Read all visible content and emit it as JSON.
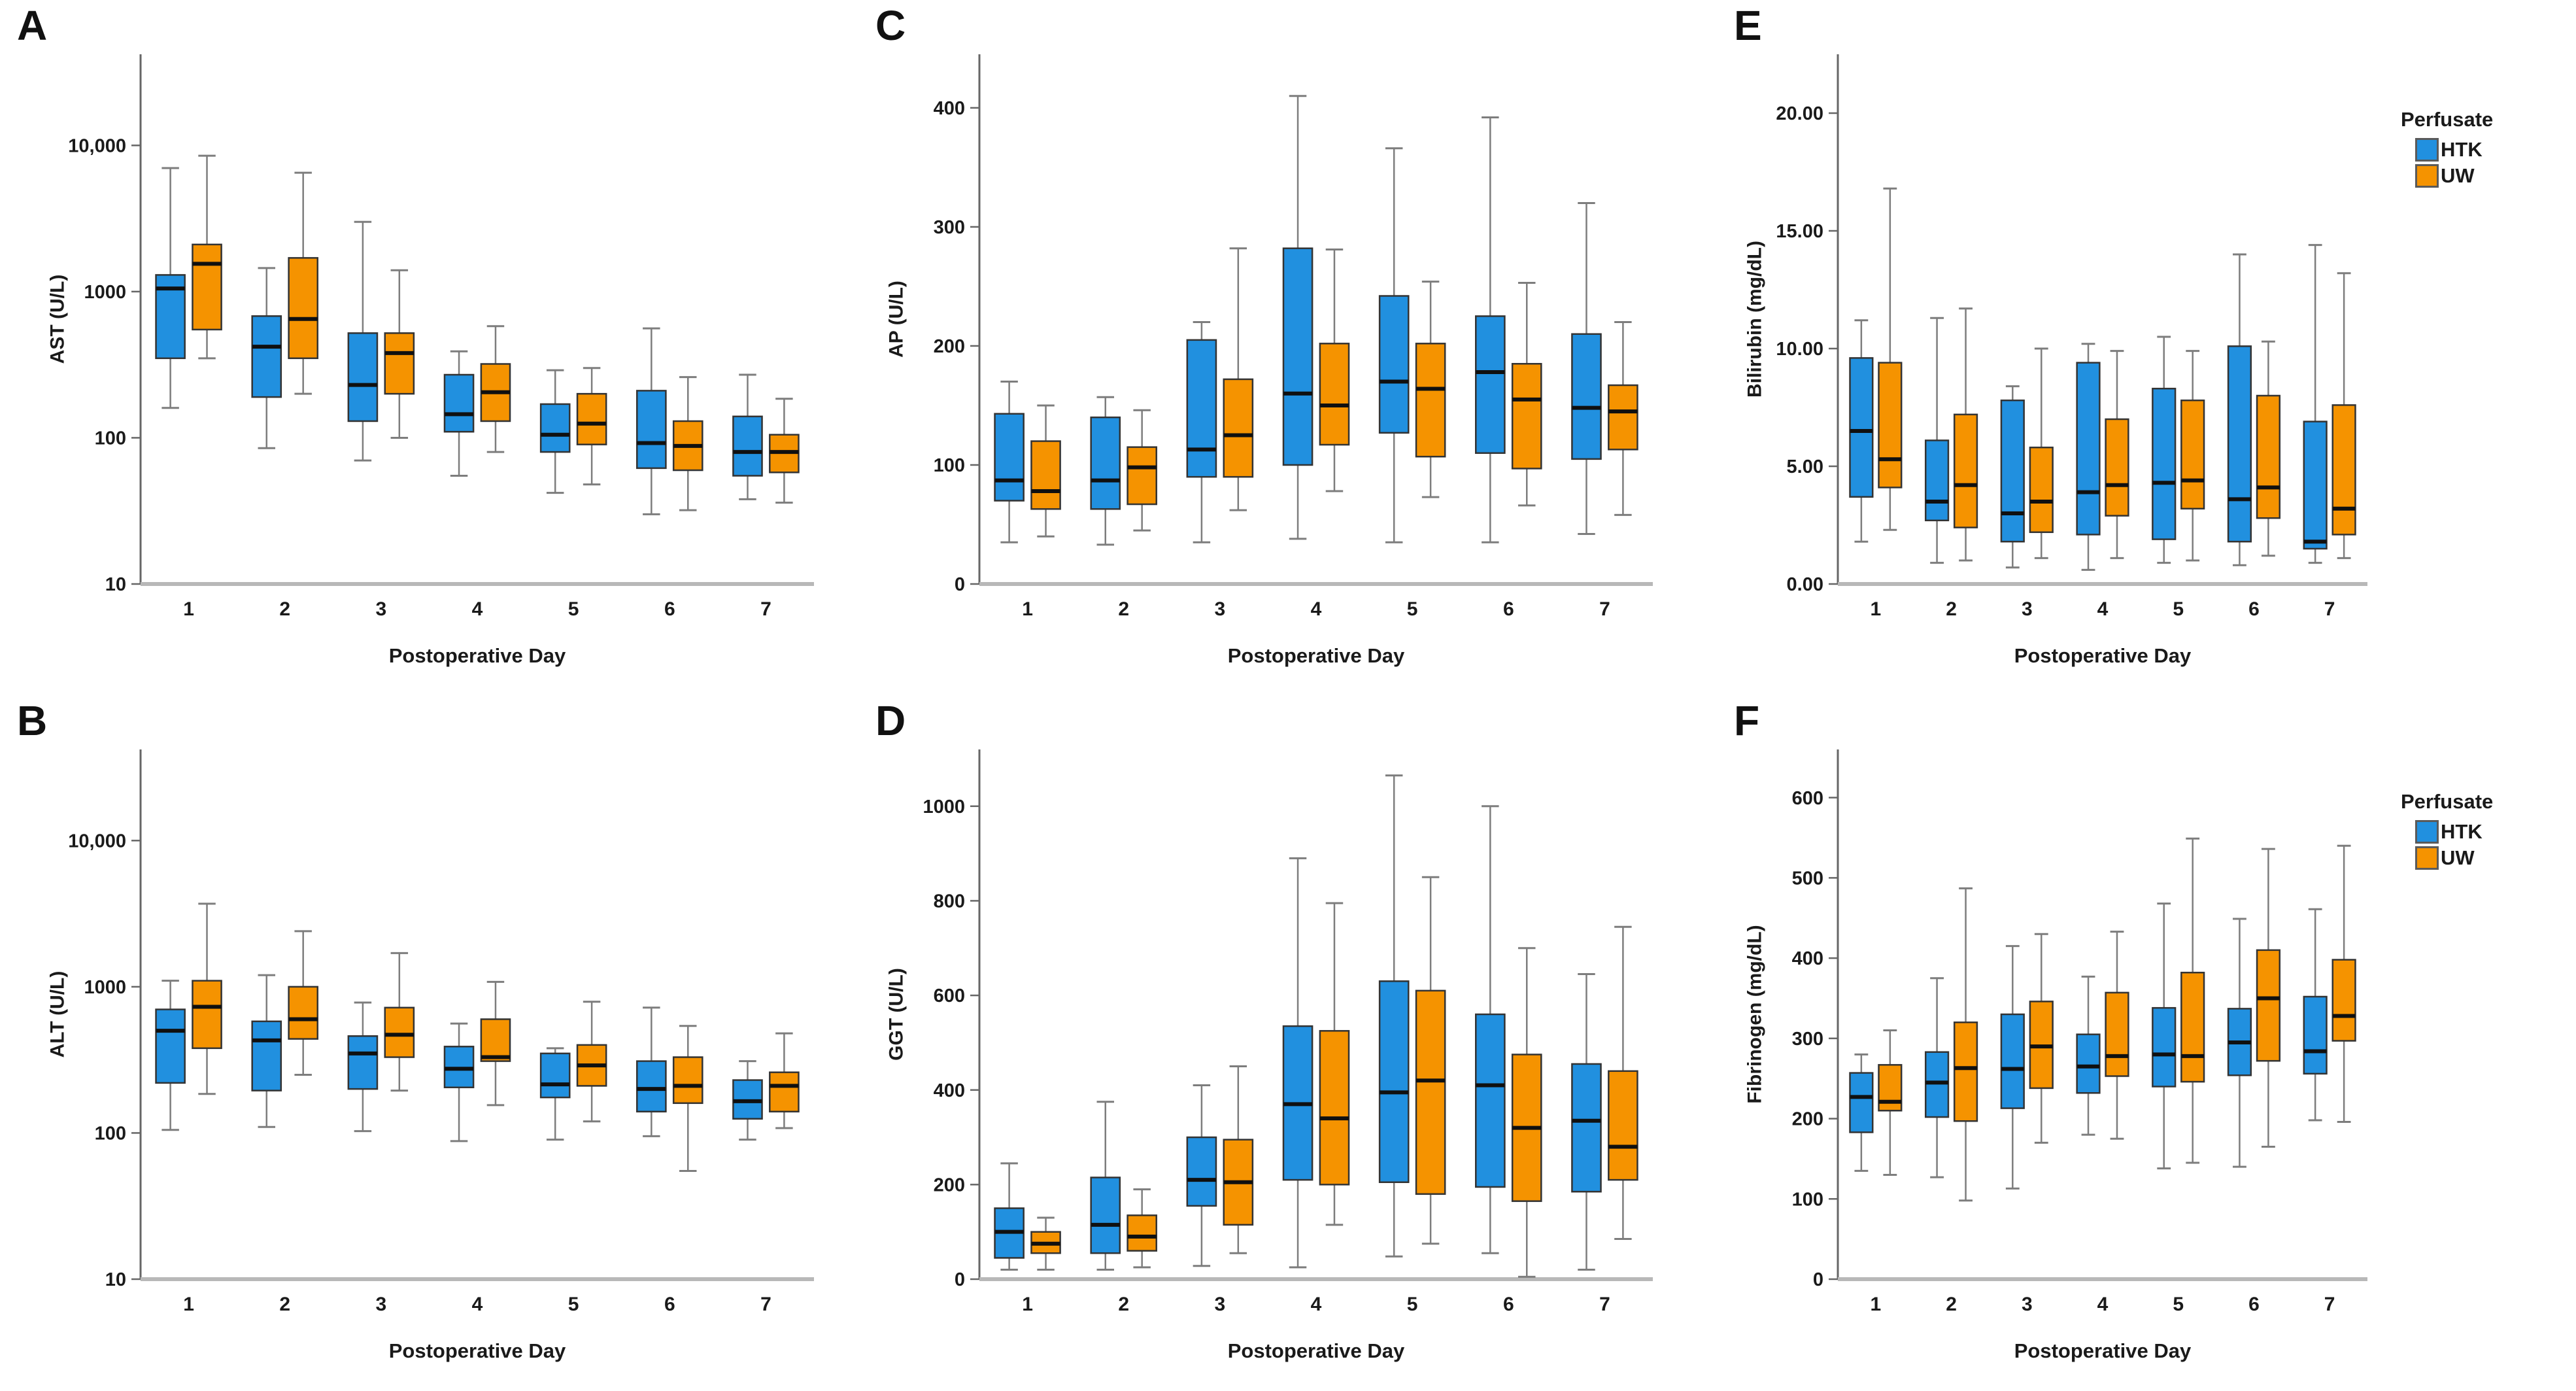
{
  "figure": {
    "xlabel": "Postoperative Day",
    "days": [
      "1",
      "2",
      "3",
      "4",
      "5",
      "6",
      "7"
    ],
    "legend": {
      "title": "Perfusate",
      "items": [
        {
          "label": "HTK",
          "color": "#2190DF"
        },
        {
          "label": "UW",
          "color": "#F59300"
        }
      ]
    },
    "colors": {
      "htk": "#2190DF",
      "uw": "#F59300",
      "box_border": "#333333",
      "median": "#101010",
      "whisker": "#7d7d7d",
      "axis": "#666666",
      "baseline": "#b8b8b8",
      "text": "#1a1a1a"
    }
  },
  "chart_data": [
    {
      "panel_label": "A",
      "type": "boxplot",
      "ylabel": "AST (U/L)",
      "xlabel": "Postoperative Day",
      "yscale": "log",
      "ylim": [
        10,
        42000
      ],
      "grid": false,
      "yticks": [
        {
          "v": 10,
          "label": "10"
        },
        {
          "v": 100,
          "label": "100"
        },
        {
          "v": 1000,
          "label": "1000"
        },
        {
          "v": 10000,
          "label": "10,000"
        }
      ],
      "categories": [
        "1",
        "2",
        "3",
        "4",
        "5",
        "6",
        "7"
      ],
      "series": [
        {
          "name": "HTK",
          "color": "#2190DF",
          "boxes": [
            {
              "low": 160,
              "q1": 350,
              "median": 1050,
              "q3": 1300,
              "high": 7000
            },
            {
              "low": 85,
              "q1": 190,
              "median": 420,
              "q3": 680,
              "high": 1450
            },
            {
              "low": 70,
              "q1": 130,
              "median": 230,
              "q3": 520,
              "high": 3000
            },
            {
              "low": 55,
              "q1": 110,
              "median": 145,
              "q3": 270,
              "high": 390
            },
            {
              "low": 42,
              "q1": 80,
              "median": 105,
              "q3": 170,
              "high": 290
            },
            {
              "low": 30,
              "q1": 62,
              "median": 92,
              "q3": 210,
              "high": 560
            },
            {
              "low": 38,
              "q1": 55,
              "median": 80,
              "q3": 140,
              "high": 270
            }
          ]
        },
        {
          "name": "UW",
          "color": "#F59300",
          "boxes": [
            {
              "low": 350,
              "q1": 550,
              "median": 1550,
              "q3": 2100,
              "high": 8500
            },
            {
              "low": 200,
              "q1": 350,
              "median": 650,
              "q3": 1700,
              "high": 6500
            },
            {
              "low": 100,
              "q1": 200,
              "median": 380,
              "q3": 520,
              "high": 1400
            },
            {
              "low": 80,
              "q1": 130,
              "median": 205,
              "q3": 320,
              "high": 580
            },
            {
              "low": 48,
              "q1": 90,
              "median": 125,
              "q3": 200,
              "high": 300
            },
            {
              "low": 32,
              "q1": 60,
              "median": 88,
              "q3": 130,
              "high": 260
            },
            {
              "low": 36,
              "q1": 58,
              "median": 80,
              "q3": 105,
              "high": 185
            }
          ]
        }
      ]
    },
    {
      "panel_label": "B",
      "type": "boxplot",
      "ylabel": "ALT (U/L)",
      "xlabel": "Postoperative Day",
      "yscale": "log",
      "ylim": [
        10,
        42000
      ],
      "grid": false,
      "yticks": [
        {
          "v": 10,
          "label": "10"
        },
        {
          "v": 100,
          "label": "100"
        },
        {
          "v": 1000,
          "label": "1000"
        },
        {
          "v": 10000,
          "label": "10,000"
        }
      ],
      "categories": [
        "1",
        "2",
        "3",
        "4",
        "5",
        "6",
        "7"
      ],
      "series": [
        {
          "name": "HTK",
          "color": "#2190DF",
          "boxes": [
            {
              "low": 105,
              "q1": 220,
              "median": 500,
              "q3": 700,
              "high": 1100
            },
            {
              "low": 110,
              "q1": 195,
              "median": 430,
              "q3": 580,
              "high": 1200
            },
            {
              "low": 103,
              "q1": 200,
              "median": 350,
              "q3": 460,
              "high": 780
            },
            {
              "low": 88,
              "q1": 205,
              "median": 275,
              "q3": 390,
              "high": 560
            },
            {
              "low": 90,
              "q1": 175,
              "median": 215,
              "q3": 350,
              "high": 380
            },
            {
              "low": 95,
              "q1": 140,
              "median": 200,
              "q3": 310,
              "high": 720
            },
            {
              "low": 90,
              "q1": 125,
              "median": 165,
              "q3": 230,
              "high": 310
            }
          ]
        },
        {
          "name": "UW",
          "color": "#F59300",
          "boxes": [
            {
              "low": 185,
              "q1": 380,
              "median": 730,
              "q3": 1100,
              "high": 3700
            },
            {
              "low": 250,
              "q1": 440,
              "median": 600,
              "q3": 1000,
              "high": 2400
            },
            {
              "low": 195,
              "q1": 330,
              "median": 470,
              "q3": 720,
              "high": 1700
            },
            {
              "low": 155,
              "q1": 310,
              "median": 330,
              "q3": 600,
              "high": 1080
            },
            {
              "low": 120,
              "q1": 210,
              "median": 290,
              "q3": 400,
              "high": 790
            },
            {
              "low": 55,
              "q1": 160,
              "median": 210,
              "q3": 330,
              "high": 540
            },
            {
              "low": 108,
              "q1": 140,
              "median": 210,
              "q3": 260,
              "high": 480
            }
          ]
        }
      ]
    },
    {
      "panel_label": "C",
      "type": "boxplot",
      "ylabel": "AP (U/L)",
      "xlabel": "Postoperative Day",
      "yscale": "linear",
      "ylim": [
        0,
        445
      ],
      "grid": false,
      "yticks": [
        {
          "v": 0,
          "label": "0"
        },
        {
          "v": 100,
          "label": "100"
        },
        {
          "v": 200,
          "label": "200"
        },
        {
          "v": 300,
          "label": "300"
        },
        {
          "v": 400,
          "label": "400"
        }
      ],
      "categories": [
        "1",
        "2",
        "3",
        "4",
        "5",
        "6",
        "7"
      ],
      "series": [
        {
          "name": "HTK",
          "color": "#2190DF",
          "boxes": [
            {
              "low": 35,
              "q1": 70,
              "median": 87,
              "q3": 143,
              "high": 170
            },
            {
              "low": 33,
              "q1": 63,
              "median": 87,
              "q3": 140,
              "high": 157
            },
            {
              "low": 35,
              "q1": 90,
              "median": 113,
              "q3": 205,
              "high": 220
            },
            {
              "low": 38,
              "q1": 100,
              "median": 160,
              "q3": 282,
              "high": 410
            },
            {
              "low": 35,
              "q1": 127,
              "median": 170,
              "q3": 242,
              "high": 366
            },
            {
              "low": 35,
              "q1": 110,
              "median": 178,
              "q3": 225,
              "high": 392
            },
            {
              "low": 42,
              "q1": 105,
              "median": 148,
              "q3": 210,
              "high": 320
            }
          ]
        },
        {
          "name": "UW",
          "color": "#F59300",
          "boxes": [
            {
              "low": 40,
              "q1": 63,
              "median": 78,
              "q3": 120,
              "high": 150
            },
            {
              "low": 45,
              "q1": 67,
              "median": 98,
              "q3": 115,
              "high": 146
            },
            {
              "low": 62,
              "q1": 90,
              "median": 125,
              "q3": 172,
              "high": 282
            },
            {
              "low": 78,
              "q1": 117,
              "median": 150,
              "q3": 202,
              "high": 281
            },
            {
              "low": 73,
              "q1": 107,
              "median": 164,
              "q3": 202,
              "high": 254
            },
            {
              "low": 66,
              "q1": 97,
              "median": 155,
              "q3": 185,
              "high": 253
            },
            {
              "low": 58,
              "q1": 113,
              "median": 145,
              "q3": 167,
              "high": 220
            }
          ]
        }
      ]
    },
    {
      "panel_label": "D",
      "type": "boxplot",
      "ylabel": "GGT (U/L)",
      "xlabel": "Postoperative Day",
      "yscale": "linear",
      "ylim": [
        0,
        1120
      ],
      "grid": false,
      "yticks": [
        {
          "v": 0,
          "label": "0"
        },
        {
          "v": 200,
          "label": "200"
        },
        {
          "v": 400,
          "label": "400"
        },
        {
          "v": 600,
          "label": "600"
        },
        {
          "v": 800,
          "label": "800"
        },
        {
          "v": 1000,
          "label": "1000"
        }
      ],
      "categories": [
        "1",
        "2",
        "3",
        "4",
        "5",
        "6",
        "7"
      ],
      "series": [
        {
          "name": "HTK",
          "color": "#2190DF",
          "boxes": [
            {
              "low": 20,
              "q1": 45,
              "median": 100,
              "q3": 150,
              "high": 245
            },
            {
              "low": 20,
              "q1": 55,
              "median": 115,
              "q3": 215,
              "high": 375
            },
            {
              "low": 28,
              "q1": 155,
              "median": 210,
              "q3": 300,
              "high": 410
            },
            {
              "low": 25,
              "q1": 210,
              "median": 370,
              "q3": 535,
              "high": 890
            },
            {
              "low": 48,
              "q1": 205,
              "median": 395,
              "q3": 630,
              "high": 1065
            },
            {
              "low": 55,
              "q1": 195,
              "median": 410,
              "q3": 560,
              "high": 1000
            },
            {
              "low": 20,
              "q1": 185,
              "median": 335,
              "q3": 455,
              "high": 645
            }
          ]
        },
        {
          "name": "UW",
          "color": "#F59300",
          "boxes": [
            {
              "low": 20,
              "q1": 55,
              "median": 75,
              "q3": 100,
              "high": 130
            },
            {
              "low": 25,
              "q1": 60,
              "median": 90,
              "q3": 135,
              "high": 190
            },
            {
              "low": 55,
              "q1": 115,
              "median": 205,
              "q3": 295,
              "high": 450
            },
            {
              "low": 115,
              "q1": 200,
              "median": 340,
              "q3": 525,
              "high": 795
            },
            {
              "low": 75,
              "q1": 180,
              "median": 420,
              "q3": 610,
              "high": 850
            },
            {
              "low": 5,
              "q1": 165,
              "median": 320,
              "q3": 475,
              "high": 700
            },
            {
              "low": 85,
              "q1": 210,
              "median": 280,
              "q3": 440,
              "high": 745
            }
          ]
        }
      ]
    },
    {
      "panel_label": "E",
      "type": "boxplot",
      "ylabel": "Bilirubin (mg/dL)",
      "xlabel": "Postoperative Day",
      "yscale": "linear",
      "ylim": [
        0,
        22.5
      ],
      "grid": false,
      "yticks": [
        {
          "v": 0,
          "label": "0.00"
        },
        {
          "v": 5,
          "label": "5.00"
        },
        {
          "v": 10,
          "label": "10.00"
        },
        {
          "v": 15,
          "label": "15.00"
        },
        {
          "v": 20,
          "label": "20.00"
        }
      ],
      "categories": [
        "1",
        "2",
        "3",
        "4",
        "5",
        "6",
        "7"
      ],
      "series": [
        {
          "name": "HTK",
          "color": "#2190DF",
          "boxes": [
            {
              "low": 1.8,
              "q1": 3.7,
              "median": 6.5,
              "q3": 9.6,
              "high": 11.2
            },
            {
              "low": 0.9,
              "q1": 2.7,
              "median": 3.5,
              "q3": 6.1,
              "high": 11.3
            },
            {
              "low": 0.7,
              "q1": 1.8,
              "median": 3.0,
              "q3": 7.8,
              "high": 8.4
            },
            {
              "low": 0.6,
              "q1": 2.1,
              "median": 3.9,
              "q3": 9.4,
              "high": 10.2
            },
            {
              "low": 0.9,
              "q1": 1.9,
              "median": 4.3,
              "q3": 8.3,
              "high": 10.5
            },
            {
              "low": 0.8,
              "q1": 1.8,
              "median": 3.6,
              "q3": 10.1,
              "high": 14.0
            },
            {
              "low": 0.9,
              "q1": 1.5,
              "median": 1.8,
              "q3": 6.9,
              "high": 14.4
            }
          ]
        },
        {
          "name": "UW",
          "color": "#F59300",
          "boxes": [
            {
              "low": 2.3,
              "q1": 4.1,
              "median": 5.3,
              "q3": 9.4,
              "high": 16.8
            },
            {
              "low": 1.0,
              "q1": 2.4,
              "median": 4.2,
              "q3": 7.2,
              "high": 11.7
            },
            {
              "low": 1.1,
              "q1": 2.2,
              "median": 3.5,
              "q3": 5.8,
              "high": 10.0
            },
            {
              "low": 1.1,
              "q1": 2.9,
              "median": 4.2,
              "q3": 7.0,
              "high": 9.9
            },
            {
              "low": 1.0,
              "q1": 3.2,
              "median": 4.4,
              "q3": 7.8,
              "high": 9.9
            },
            {
              "low": 1.2,
              "q1": 2.8,
              "median": 4.1,
              "q3": 8.0,
              "high": 10.3
            },
            {
              "low": 1.1,
              "q1": 2.1,
              "median": 3.2,
              "q3": 7.6,
              "high": 13.2
            }
          ]
        }
      ]
    },
    {
      "panel_label": "F",
      "type": "boxplot",
      "ylabel": "Fibrinogen (mg/dL)",
      "xlabel": "Postoperative Day",
      "yscale": "linear",
      "ylim": [
        0,
        660
      ],
      "grid": false,
      "yticks": [
        {
          "v": 0,
          "label": "0"
        },
        {
          "v": 100,
          "label": "100"
        },
        {
          "v": 200,
          "label": "200"
        },
        {
          "v": 300,
          "label": "300"
        },
        {
          "v": 400,
          "label": "400"
        },
        {
          "v": 500,
          "label": "500"
        },
        {
          "v": 600,
          "label": "600"
        }
      ],
      "categories": [
        "1",
        "2",
        "3",
        "4",
        "5",
        "6",
        "7"
      ],
      "series": [
        {
          "name": "HTK",
          "color": "#2190DF",
          "boxes": [
            {
              "low": 135,
              "q1": 183,
              "median": 227,
              "q3": 257,
              "high": 280
            },
            {
              "low": 127,
              "q1": 202,
              "median": 245,
              "q3": 283,
              "high": 375
            },
            {
              "low": 113,
              "q1": 213,
              "median": 262,
              "q3": 330,
              "high": 415
            },
            {
              "low": 180,
              "q1": 232,
              "median": 265,
              "q3": 305,
              "high": 377
            },
            {
              "low": 138,
              "q1": 240,
              "median": 280,
              "q3": 338,
              "high": 468
            },
            {
              "low": 140,
              "q1": 254,
              "median": 295,
              "q3": 337,
              "high": 449
            },
            {
              "low": 198,
              "q1": 256,
              "median": 284,
              "q3": 352,
              "high": 461
            }
          ]
        },
        {
          "name": "UW",
          "color": "#F59300",
          "boxes": [
            {
              "low": 130,
              "q1": 210,
              "median": 221,
              "q3": 267,
              "high": 310
            },
            {
              "low": 98,
              "q1": 197,
              "median": 263,
              "q3": 320,
              "high": 487
            },
            {
              "low": 170,
              "q1": 238,
              "median": 290,
              "q3": 346,
              "high": 430
            },
            {
              "low": 175,
              "q1": 253,
              "median": 278,
              "q3": 357,
              "high": 433
            },
            {
              "low": 145,
              "q1": 246,
              "median": 278,
              "q3": 382,
              "high": 549
            },
            {
              "low": 165,
              "q1": 272,
              "median": 350,
              "q3": 410,
              "high": 536
            },
            {
              "low": 196,
              "q1": 297,
              "median": 328,
              "q3": 398,
              "high": 540
            }
          ]
        }
      ]
    }
  ]
}
